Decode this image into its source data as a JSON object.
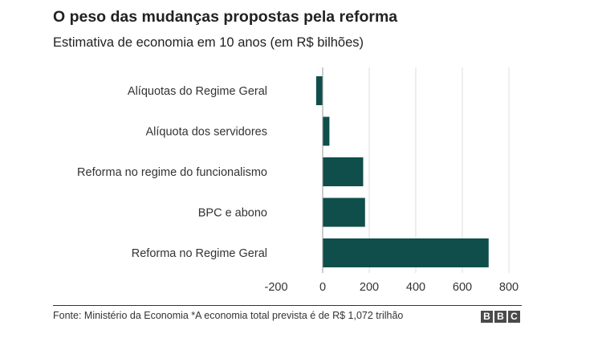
{
  "header": {
    "title": "O peso das mudanças propostas pela reforma",
    "subtitle": "Estimativa de economia em 10 anos (em R$ bilhões)"
  },
  "chart_data": {
    "type": "bar",
    "orientation": "horizontal",
    "title": "O peso das mudanças propostas pela reforma",
    "subtitle": "Estimativa de economia em 10 anos (em R$ bilhões)",
    "categories": [
      "Alíquotas do Regime Geral",
      "Alíquota dos servidores",
      "Reforma no regime do funcionalismo",
      "BPC e abono",
      "Reforma no Regime Geral"
    ],
    "values": [
      -28,
      29,
      174,
      182,
      713
    ],
    "xlim": [
      -200,
      800
    ],
    "xticks": [
      -200,
      0,
      200,
      400,
      600,
      800
    ],
    "tick_labels": [
      "-200",
      "0",
      "200",
      "400",
      "600",
      "800"
    ],
    "xlabel": "",
    "ylabel": "",
    "grid": true,
    "bar_color": "#0f4e4a",
    "grid_color": "#dcdcdc",
    "zero_line_color": "#999999"
  },
  "footer": {
    "source": "Fonte: Ministério da Economia *A economia total prevista é de R$ 1,072 trilhão",
    "logo_letters": [
      "B",
      "B",
      "C"
    ]
  }
}
